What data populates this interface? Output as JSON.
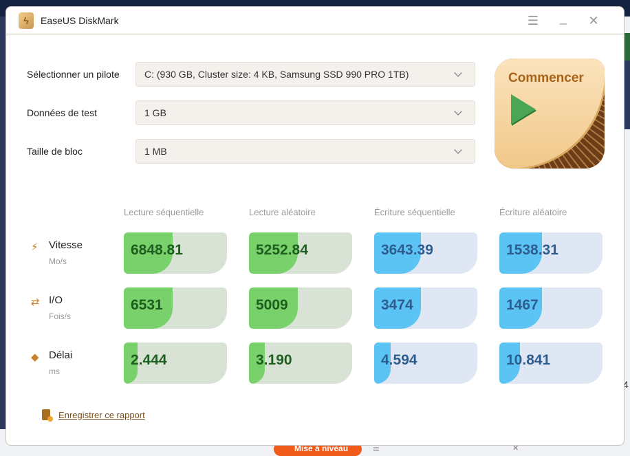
{
  "window": {
    "title": "EaseUS DiskMark"
  },
  "settings": [
    {
      "label": "Sélectionner un pilote",
      "value": "C: (930 GB, Cluster size: 4 KB, Samsung SSD 990 PRO 1TB)"
    },
    {
      "label": "Données de test",
      "value": "1 GB"
    },
    {
      "label": "Taille de bloc",
      "value": "1 MB"
    }
  ],
  "start_button": {
    "label": "Commencer"
  },
  "columns": [
    "Lecture séquentielle",
    "Lecture aléatoire",
    "Écriture séquentielle",
    "Écriture aléatoire"
  ],
  "metrics": [
    {
      "name": "Vitesse",
      "unit": "Mo/s",
      "values": [
        "6848.81",
        "5252.84",
        "3643.39",
        "1538.31"
      ],
      "fill_percent": [
        47,
        47,
        45,
        41
      ]
    },
    {
      "name": "I/O",
      "unit": "Fois/s",
      "values": [
        "6531",
        "5009",
        "3474",
        "1467"
      ],
      "fill_percent": [
        47,
        47,
        45,
        41
      ]
    },
    {
      "name": "Délai",
      "unit": "ms",
      "values": [
        "2.444",
        "3.190",
        "4.594",
        "10.841"
      ],
      "fill_percent": [
        13,
        15,
        16,
        20
      ]
    }
  ],
  "report_link": "Enregistrer ce rapport",
  "background": {
    "upgrade_button": "Mise à niveau",
    "side_text": "4"
  },
  "colors": {
    "read_fill": "#79d16c",
    "write_fill": "#5bc4f5",
    "accent": "#a8631a"
  }
}
